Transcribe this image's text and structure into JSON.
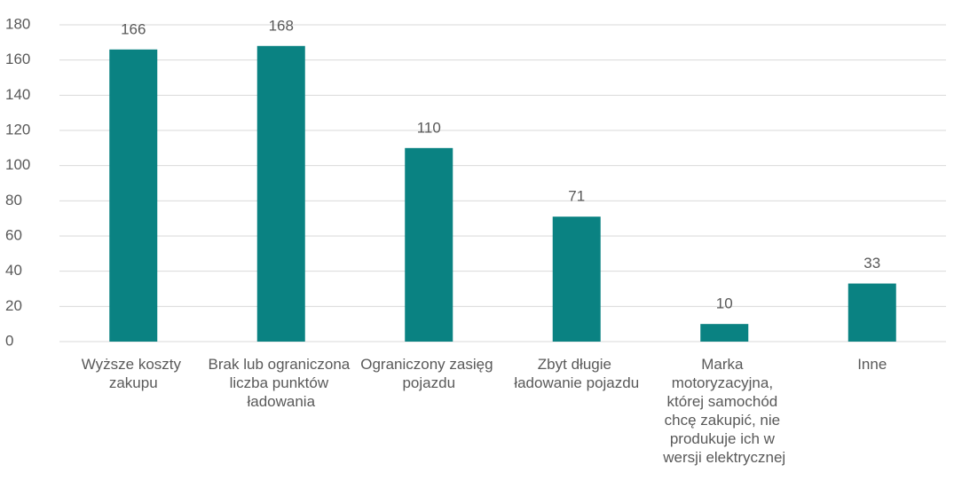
{
  "chart_data": {
    "type": "bar",
    "categories": [
      "Wyższe koszty zakupu",
      "Brak lub ograniczona liczba punktów ładowania",
      "Ograniczony zasięg pojazdu",
      "Zbyt długie ładowanie pojazdu",
      "Marka motoryzacyjna, której samochód chcę zakupić, nie produkuje ich w wersji elektrycznej",
      "Inne"
    ],
    "values": [
      166,
      168,
      110,
      71,
      10,
      33
    ],
    "color": "#0a8282",
    "ylim": [
      0,
      180
    ],
    "yticks": [
      0,
      20,
      40,
      60,
      80,
      100,
      120,
      140,
      160,
      180
    ],
    "grid": true
  }
}
